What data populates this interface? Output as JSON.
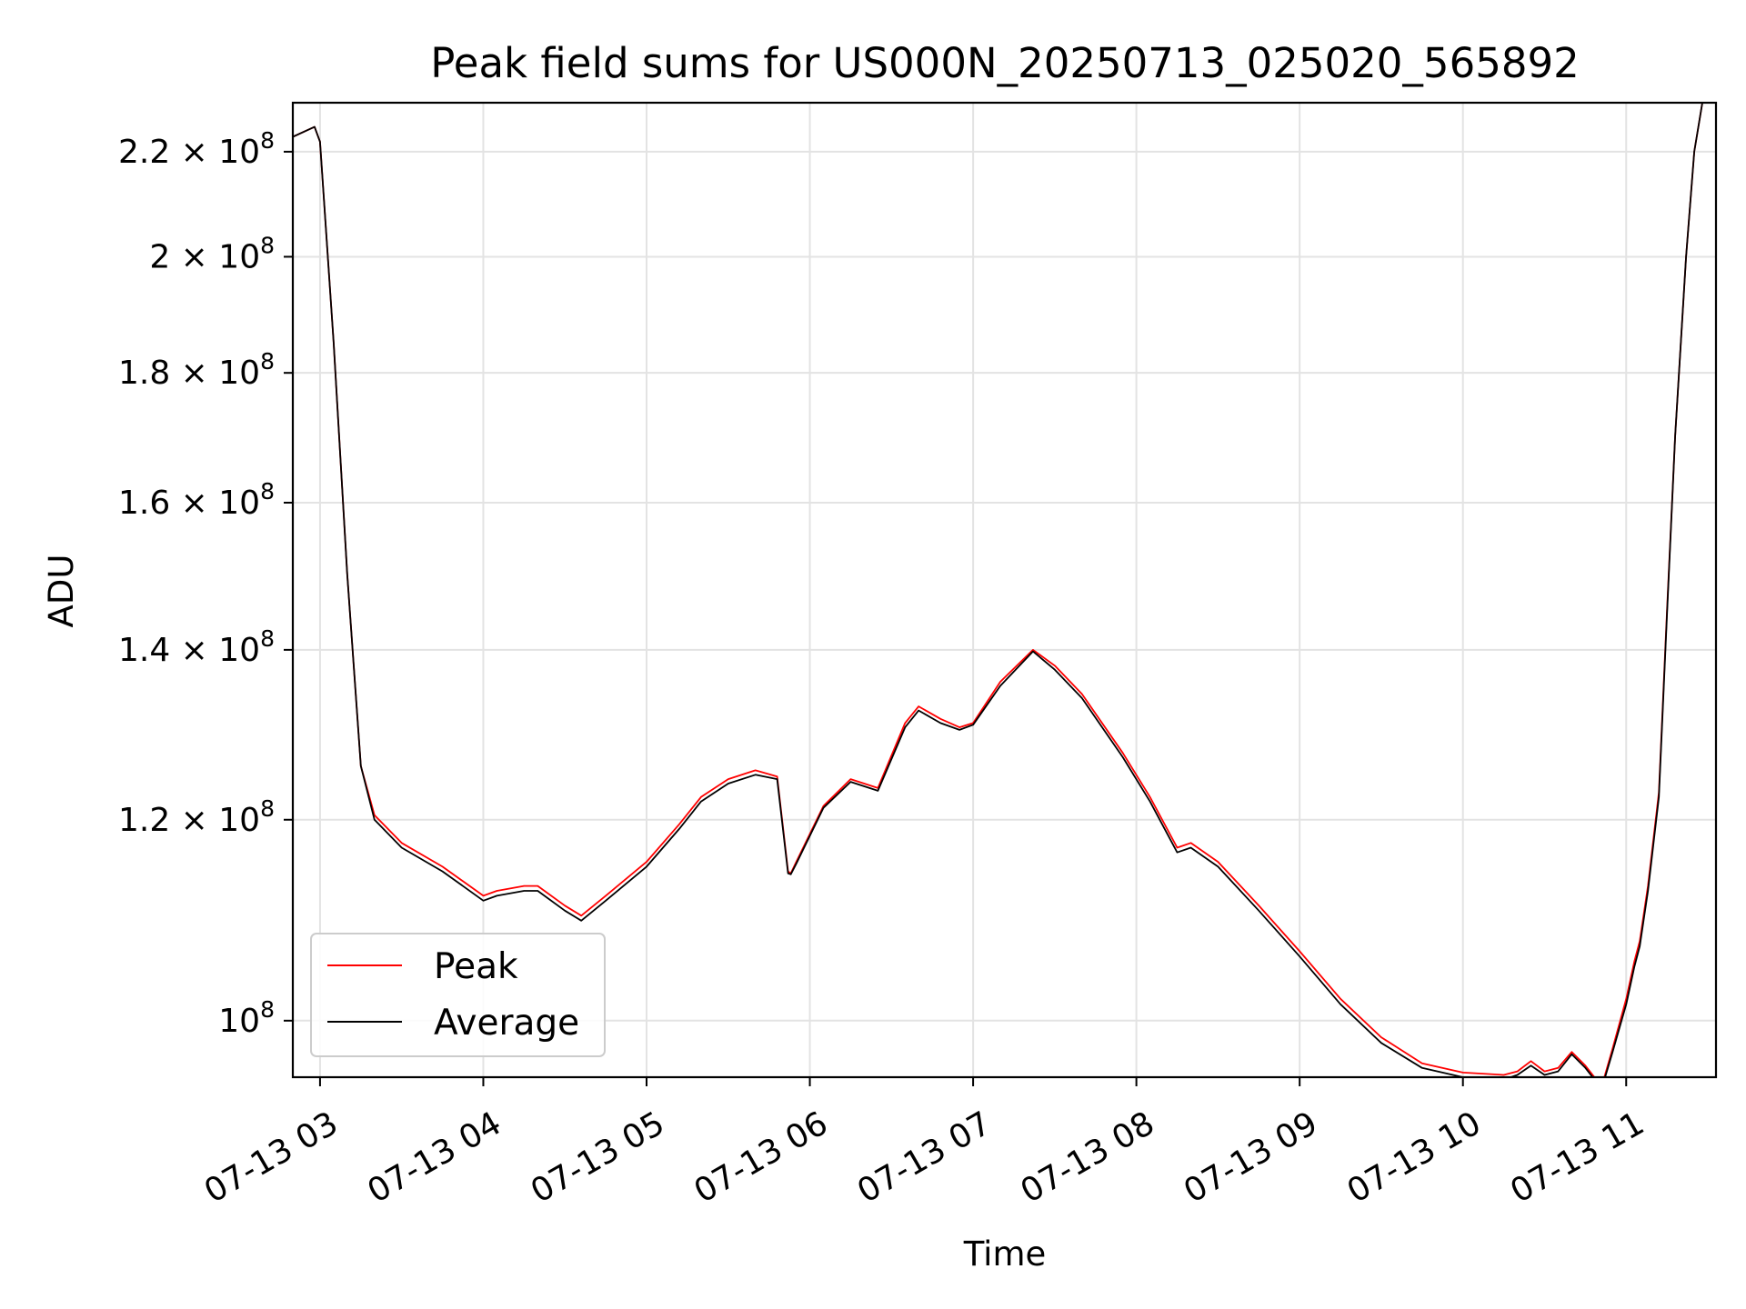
{
  "chart_data": {
    "type": "line",
    "title": "Peak field sums for US000N_20250713_025020_565892",
    "xlabel": "Time",
    "ylabel": "ADU",
    "x_unit": "hours (07-13)",
    "xlim": [
      "07-13 02:50",
      "07-13 11:33"
    ],
    "ylim": [
      95000000,
      230000000
    ],
    "yscale": "log",
    "grid": true,
    "legend_position": "lower-left",
    "x_ticks": [
      {
        "label": "07-13 03",
        "value": "07-13 03:00"
      },
      {
        "label": "07-13 04",
        "value": "07-13 04:00"
      },
      {
        "label": "07-13 05",
        "value": "07-13 05:00"
      },
      {
        "label": "07-13 06",
        "value": "07-13 06:00"
      },
      {
        "label": "07-13 07",
        "value": "07-13 07:00"
      },
      {
        "label": "07-13 08",
        "value": "07-13 08:00"
      },
      {
        "label": "07-13 09",
        "value": "07-13 09:00"
      },
      {
        "label": "07-13 10",
        "value": "07-13 10:00"
      },
      {
        "label": "07-13 11",
        "value": "07-13 11:00"
      }
    ],
    "y_ticks": [
      {
        "mantissa": "10",
        "exponent": "8",
        "value": 100000000
      },
      {
        "mantissa": "1.2 × 10",
        "exponent": "8",
        "value": 120000000
      },
      {
        "mantissa": "1.4 × 10",
        "exponent": "8",
        "value": 140000000
      },
      {
        "mantissa": "1.6 × 10",
        "exponent": "8",
        "value": 160000000
      },
      {
        "mantissa": "1.8 × 10",
        "exponent": "8",
        "value": 180000000
      },
      {
        "mantissa": "2 × 10",
        "exponent": "8",
        "value": 200000000
      },
      {
        "mantissa": "2.2 × 10",
        "exponent": "8",
        "value": 220000000
      }
    ],
    "x": [
      "07-13 02:50",
      "07-13 02:58",
      "07-13 03:00",
      "07-13 03:05",
      "07-13 03:10",
      "07-13 03:15",
      "07-13 03:20",
      "07-13 03:30",
      "07-13 03:45",
      "07-13 04:00",
      "07-13 04:05",
      "07-13 04:15",
      "07-13 04:20",
      "07-13 04:30",
      "07-13 04:36",
      "07-13 04:45",
      "07-13 05:00",
      "07-13 05:12",
      "07-13 05:20",
      "07-13 05:30",
      "07-13 05:40",
      "07-13 05:48",
      "07-13 05:52",
      "07-13 05:53",
      "07-13 05:55",
      "07-13 06:05",
      "07-13 06:15",
      "07-13 06:25",
      "07-13 06:35",
      "07-13 06:40",
      "07-13 06:48",
      "07-13 06:55",
      "07-13 07:00",
      "07-13 07:10",
      "07-13 07:22",
      "07-13 07:30",
      "07-13 07:40",
      "07-13 07:55",
      "07-13 08:05",
      "07-13 08:15",
      "07-13 08:20",
      "07-13 08:30",
      "07-13 08:45",
      "07-13 09:00",
      "07-13 09:15",
      "07-13 09:30",
      "07-13 09:45",
      "07-13 10:00",
      "07-13 10:15",
      "07-13 10:20",
      "07-13 10:25",
      "07-13 10:30",
      "07-13 10:35",
      "07-13 10:40",
      "07-13 10:45",
      "07-13 10:51",
      "07-13 10:55",
      "07-13 11:00",
      "07-13 11:03",
      "07-13 11:05",
      "07-13 11:08",
      "07-13 11:12",
      "07-13 11:15",
      "07-13 11:18",
      "07-13 11:22",
      "07-13 11:25",
      "07-13 11:28",
      "07-13 11:33"
    ],
    "series": [
      {
        "name": "Peak",
        "color": "#ff0000",
        "values": [
          223000000,
          225000000,
          222000000,
          185000000,
          150000000,
          126000000,
          120500000,
          117500000,
          115000000,
          112000000,
          112500000,
          113000000,
          113000000,
          111000000,
          110000000,
          112000000,
          115500000,
          119500000,
          122500000,
          124500000,
          125500000,
          124800000,
          114500000,
          114300000,
          115500000,
          121500000,
          124500000,
          123500000,
          131000000,
          133000000,
          131500000,
          130500000,
          131000000,
          136000000,
          140000000,
          138000000,
          134500000,
          127500000,
          122500000,
          117000000,
          117500000,
          115500000,
          111000000,
          106500000,
          102000000,
          98500000,
          96200000,
          95400000,
          95200000,
          95500000,
          96400000,
          95500000,
          95800000,
          97200000,
          96000000,
          94200000,
          97500000,
          102000000,
          105500000,
          107500000,
          113000000,
          123000000,
          145000000,
          170000000,
          200000000,
          220000000,
          230000000,
          230000000
        ]
      },
      {
        "name": "Average",
        "color": "#000000",
        "values": [
          223000000,
          225000000,
          222000000,
          185000000,
          150000000,
          126000000,
          120000000,
          117000000,
          114500000,
          111500000,
          112000000,
          112500000,
          112500000,
          110500000,
          109500000,
          111500000,
          115000000,
          119000000,
          122000000,
          124000000,
          125000000,
          124500000,
          114300000,
          114200000,
          115300000,
          121300000,
          124200000,
          123200000,
          130500000,
          132500000,
          131000000,
          130200000,
          130800000,
          135500000,
          139800000,
          137500000,
          134000000,
          127000000,
          122000000,
          116500000,
          117000000,
          115000000,
          110500000,
          106000000,
          101500000,
          98000000,
          95800000,
          95000000,
          94800000,
          95200000,
          96000000,
          95200000,
          95500000,
          97000000,
          95800000,
          94000000,
          97200000,
          101500000,
          105000000,
          107000000,
          112500000,
          122500000,
          144500000,
          170000000,
          200000000,
          220000000,
          230000000,
          230000000
        ]
      }
    ]
  }
}
